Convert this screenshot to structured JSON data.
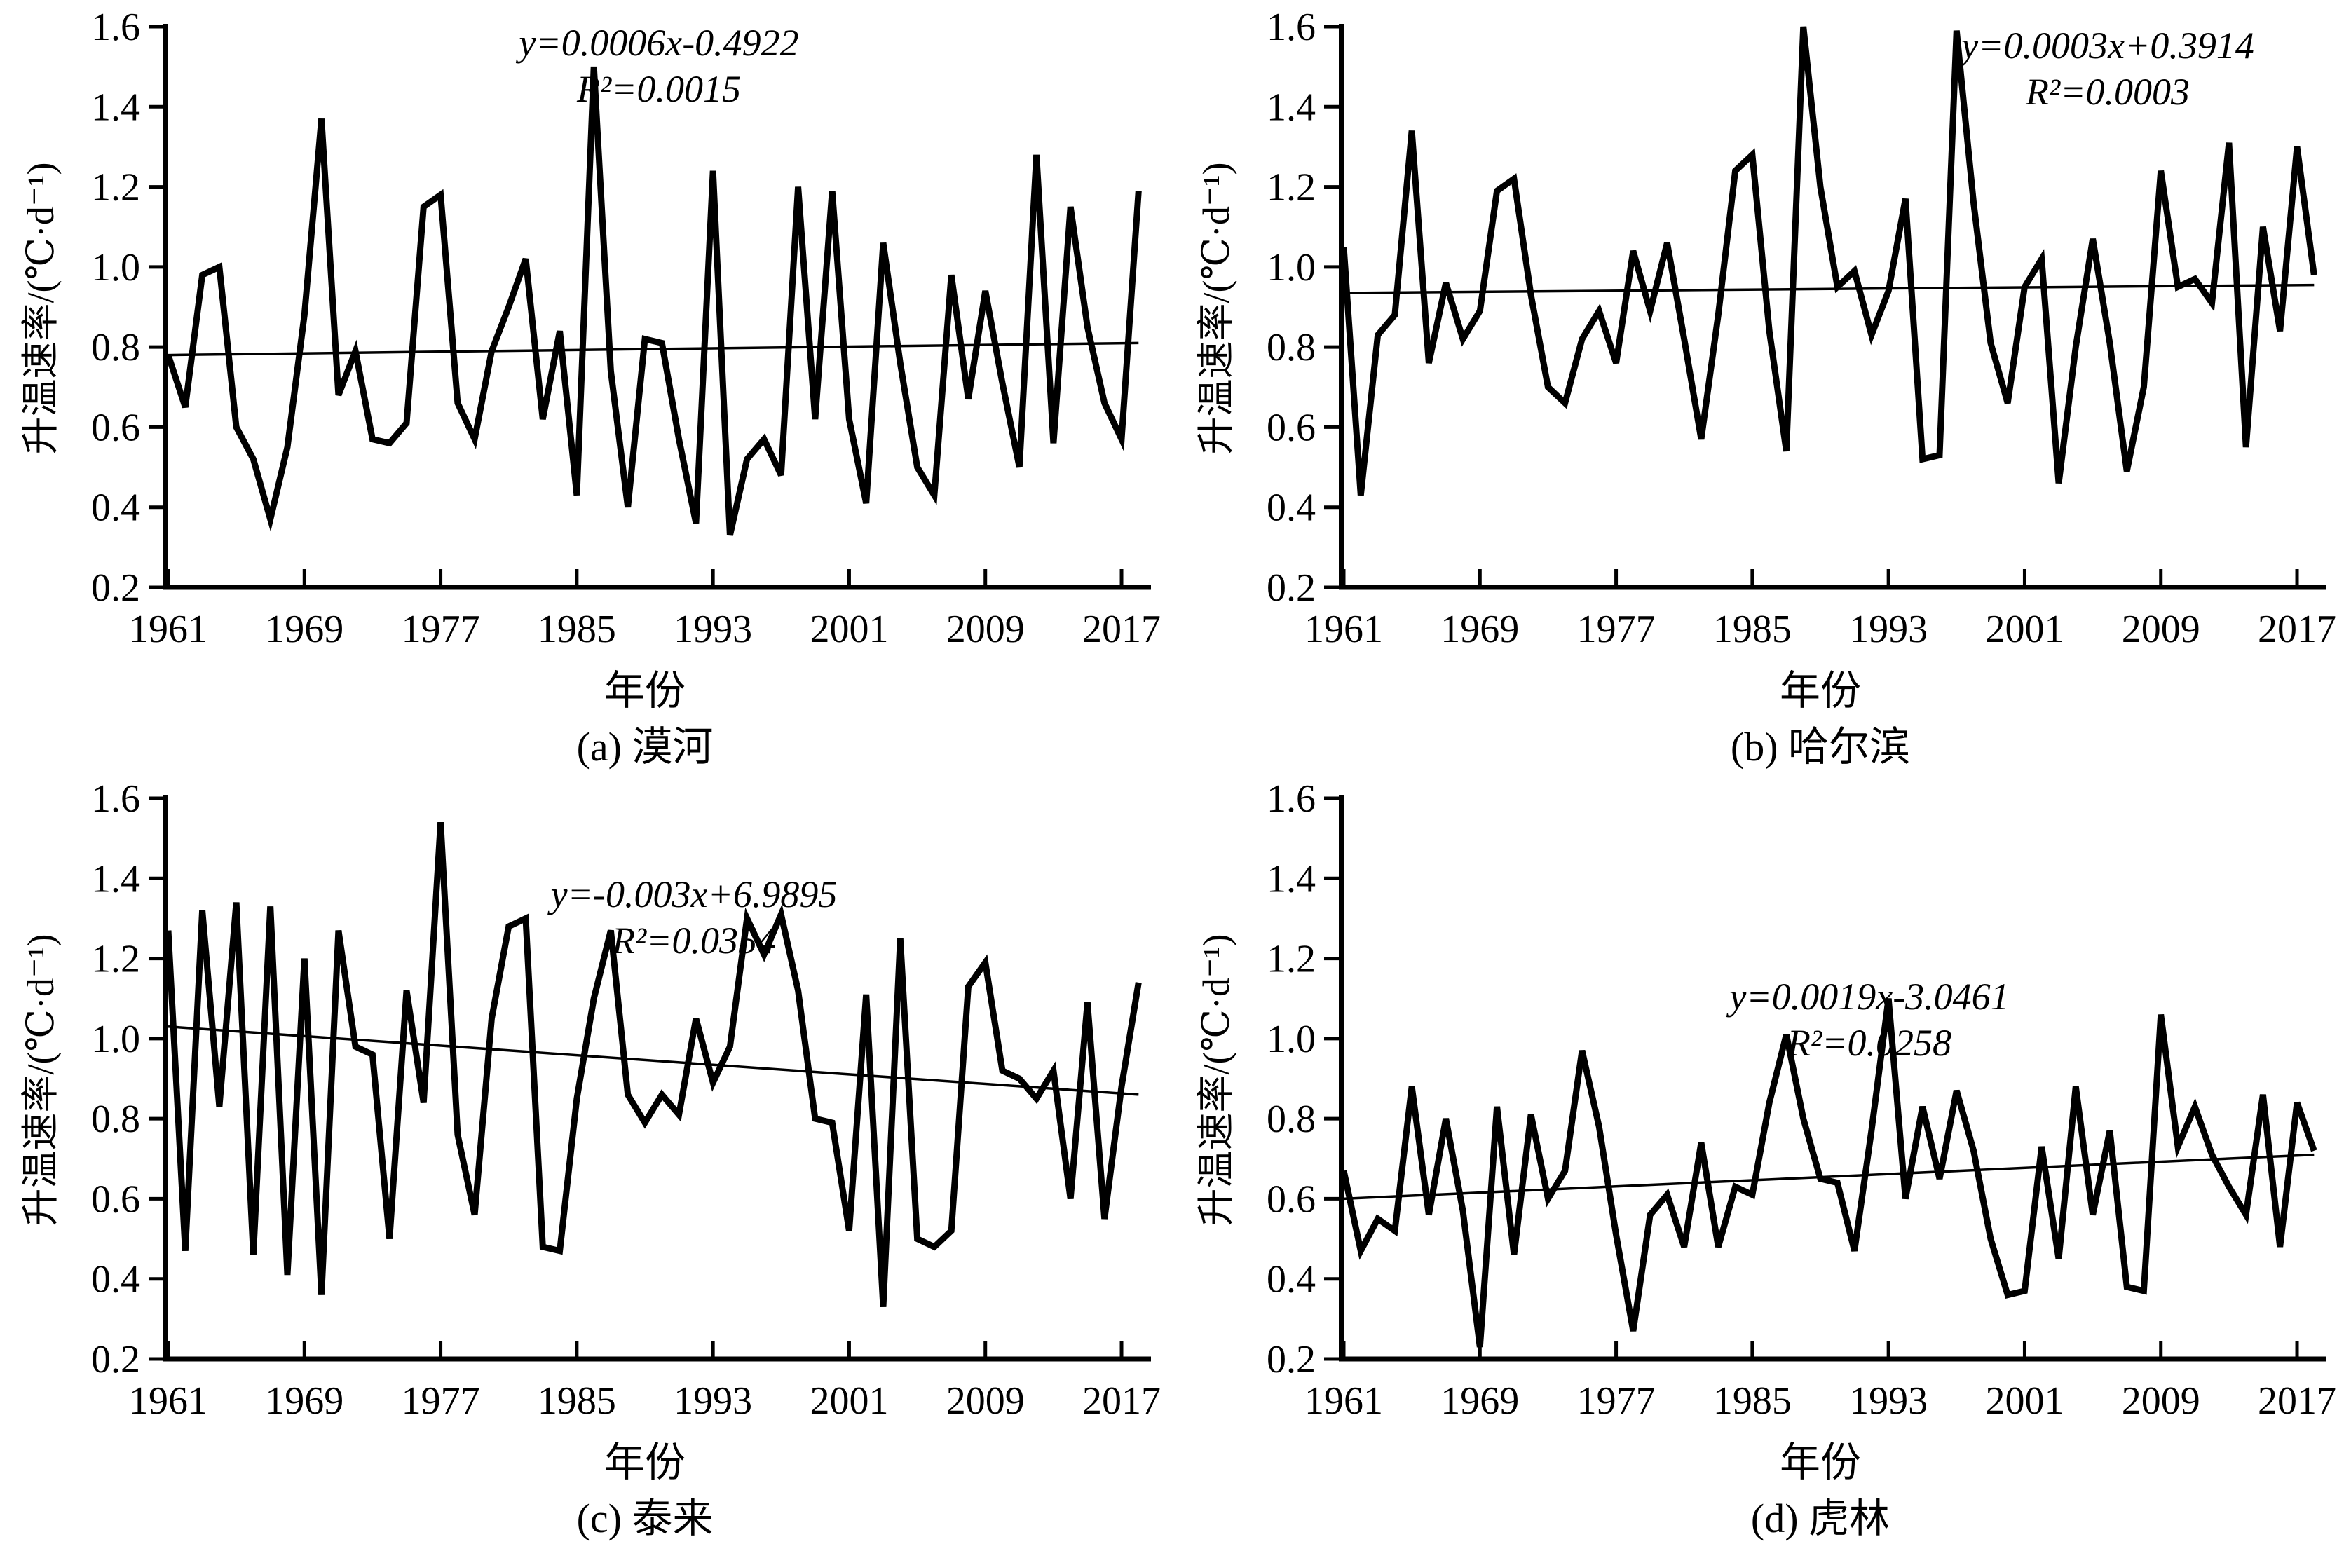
{
  "chart_data": {
    "type": "line",
    "xlabel": "年份",
    "ylabel": "升温速率/(℃·d⁻¹)",
    "x": [
      1961,
      1962,
      1963,
      1964,
      1965,
      1966,
      1967,
      1968,
      1969,
      1970,
      1971,
      1972,
      1973,
      1974,
      1975,
      1976,
      1977,
      1978,
      1979,
      1980,
      1981,
      1982,
      1983,
      1984,
      1985,
      1986,
      1987,
      1988,
      1989,
      1990,
      1991,
      1992,
      1993,
      1994,
      1995,
      1996,
      1997,
      1998,
      1999,
      2000,
      2001,
      2002,
      2003,
      2004,
      2005,
      2006,
      2007,
      2008,
      2009,
      2010,
      2011,
      2012,
      2013,
      2014,
      2015,
      2016,
      2017,
      2018
    ],
    "xticks": [
      1961,
      1969,
      1977,
      1985,
      1993,
      2001,
      2009,
      2017
    ],
    "yticks": [
      0.2,
      0.4,
      0.6,
      0.8,
      1.0,
      1.2,
      1.4,
      1.6
    ],
    "ylim": [
      0.2,
      1.6
    ],
    "xlim": [
      1961,
      2019
    ],
    "grid": false,
    "legend": "none",
    "line_color": "#000000",
    "panels": [
      {
        "id": "a",
        "caption": "(a) 漠河",
        "equation": "y=0.0006x-0.4922",
        "r2": "R²=0.0015",
        "trend": {
          "start": 0.78,
          "end": 0.81
        },
        "values": [
          0.78,
          0.65,
          0.98,
          1.0,
          0.6,
          0.52,
          0.37,
          0.55,
          0.88,
          1.37,
          0.68,
          0.79,
          0.57,
          0.56,
          0.61,
          1.15,
          1.18,
          0.66,
          0.57,
          0.79,
          0.9,
          1.02,
          0.62,
          0.84,
          0.43,
          1.5,
          0.74,
          0.4,
          0.82,
          0.81,
          0.57,
          0.36,
          1.24,
          0.33,
          0.52,
          0.57,
          0.48,
          1.2,
          0.62,
          1.19,
          0.62,
          0.41,
          1.06,
          0.76,
          0.5,
          0.43,
          0.98,
          0.67,
          0.94,
          0.71,
          0.5,
          1.28,
          0.56,
          1.15,
          0.85,
          0.66,
          0.57,
          1.19
        ]
      },
      {
        "id": "b",
        "caption": "(b) 哈尔滨",
        "equation": "y=0.0003x+0.3914",
        "r2": "R²=0.0003",
        "trend": {
          "start": 0.935,
          "end": 0.955
        },
        "values": [
          1.05,
          0.43,
          0.83,
          0.88,
          1.34,
          0.76,
          0.96,
          0.82,
          0.89,
          1.19,
          1.22,
          0.93,
          0.7,
          0.66,
          0.82,
          0.89,
          0.76,
          1.04,
          0.89,
          1.06,
          0.82,
          0.57,
          0.88,
          1.24,
          1.28,
          0.84,
          0.54,
          1.6,
          1.2,
          0.95,
          0.99,
          0.83,
          0.94,
          1.17,
          0.52,
          0.53,
          1.59,
          1.16,
          0.81,
          0.66,
          0.95,
          1.02,
          0.46,
          0.8,
          1.07,
          0.81,
          0.49,
          0.7,
          1.24,
          0.95,
          0.97,
          0.91,
          1.31,
          0.55,
          1.1,
          0.84,
          1.3,
          0.98
        ]
      },
      {
        "id": "c",
        "caption": "(c) 泰来",
        "equation": "y=-0.003x+6.9895",
        "r2": "R²=0.0354",
        "trend": {
          "start": 1.03,
          "end": 0.86
        },
        "values": [
          1.27,
          0.47,
          1.32,
          0.83,
          1.34,
          0.46,
          1.33,
          0.41,
          1.2,
          0.36,
          1.27,
          0.98,
          0.96,
          0.5,
          1.12,
          0.84,
          1.54,
          0.76,
          0.56,
          1.05,
          1.28,
          1.3,
          0.48,
          0.47,
          0.85,
          1.1,
          1.27,
          0.86,
          0.79,
          0.86,
          0.81,
          1.05,
          0.89,
          0.98,
          1.3,
          1.21,
          1.31,
          1.12,
          0.8,
          0.79,
          0.52,
          1.11,
          0.33,
          1.25,
          0.5,
          0.48,
          0.52,
          1.13,
          1.19,
          0.92,
          0.9,
          0.85,
          0.92,
          0.6,
          1.09,
          0.55,
          0.88,
          1.14
        ]
      },
      {
        "id": "d",
        "caption": "(d) 虎林",
        "equation": "y=0.0019x-3.0461",
        "r2": "R²=0.0258",
        "trend": {
          "start": 0.6,
          "end": 0.71
        },
        "values": [
          0.67,
          0.47,
          0.55,
          0.52,
          0.88,
          0.56,
          0.8,
          0.57,
          0.23,
          0.83,
          0.46,
          0.81,
          0.6,
          0.67,
          0.97,
          0.78,
          0.51,
          0.27,
          0.56,
          0.61,
          0.48,
          0.74,
          0.48,
          0.63,
          0.61,
          0.84,
          1.01,
          0.8,
          0.65,
          0.64,
          0.47,
          0.77,
          1.1,
          0.6,
          0.83,
          0.65,
          0.87,
          0.72,
          0.5,
          0.36,
          0.37,
          0.73,
          0.45,
          0.88,
          0.56,
          0.77,
          0.38,
          0.37,
          1.06,
          0.73,
          0.83,
          0.71,
          0.63,
          0.56,
          0.86,
          0.48,
          0.84,
          0.72
        ]
      }
    ]
  }
}
